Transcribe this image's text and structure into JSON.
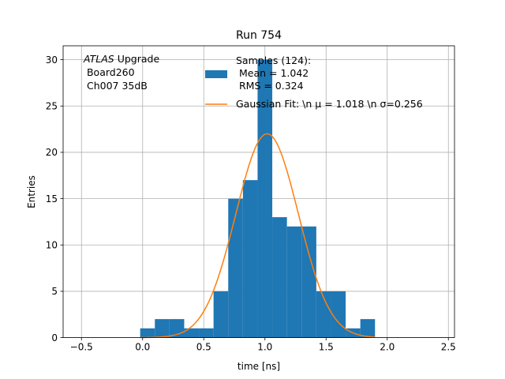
{
  "chart_data": {
    "type": "bar",
    "title": "Run 754",
    "xlabel": "time [ns]",
    "ylabel": "Entries",
    "xlim": [
      -0.65,
      2.55
    ],
    "ylim": [
      0,
      31.5
    ],
    "xticks": [
      -0.5,
      0.0,
      0.5,
      1.0,
      1.5,
      2.0,
      2.5
    ],
    "xtick_labels": [
      "−0.5",
      "0.0",
      "0.5",
      "1.0",
      "1.5",
      "2.0",
      "2.5"
    ],
    "yticks": [
      0,
      5,
      10,
      15,
      20,
      25,
      30
    ],
    "ytick_labels": [
      "0",
      "5",
      "10",
      "15",
      "20",
      "25",
      "30"
    ],
    "grid": true,
    "histogram": {
      "bin_edges": [
        -0.02,
        0.1,
        0.22,
        0.34,
        0.46,
        0.58,
        0.7,
        0.82,
        0.94,
        1.06,
        1.18,
        1.3,
        1.42,
        1.54,
        1.66,
        1.78,
        1.9
      ],
      "counts": [
        1,
        2,
        2,
        1,
        1,
        5,
        15,
        17,
        30,
        13,
        12,
        12,
        5,
        5,
        1,
        2
      ],
      "color": "#1f77b4"
    },
    "gaussian_fit": {
      "amplitude": 22,
      "mu": 1.018,
      "sigma": 0.256,
      "color": "#ff7f0e"
    },
    "annotation": {
      "italic": "ATLAS",
      "line1_rest": " Upgrade",
      "line2": " Board260",
      "line3": " Ch007 35dB"
    },
    "legend": {
      "placement": "top-right",
      "entries": [
        {
          "label_lines": [
            "Samples (124):",
            " Mean = 1.042",
            " RMS = 0.324"
          ],
          "color": "#1f77b4",
          "kind": "patch"
        },
        {
          "label_lines": [
            "Gaussian Fit: \\n μ = 1.018 \\n σ=0.256"
          ],
          "color": "#ff7f0e",
          "kind": "line"
        }
      ]
    }
  }
}
